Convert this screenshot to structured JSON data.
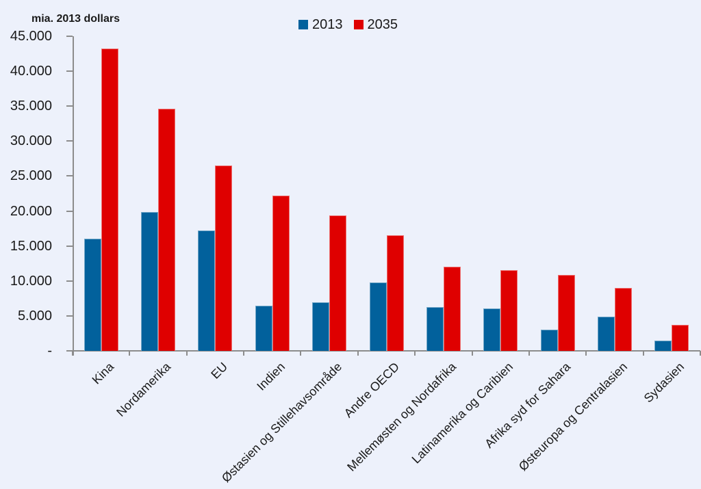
{
  "page": {
    "background": "#EDF1FB",
    "text_color": "#1A1A1A",
    "axis_color": "#8C8C8C"
  },
  "chart_data": {
    "type": "bar",
    "title": "mia. 2013 dollars",
    "categories": [
      "Kina",
      "Nordamerika",
      "EU",
      "Indien",
      "Østasien og Stillehavsområde",
      "Andre OECD",
      "Mellemøsten og Nordafrika",
      "Latinamerika og Caribien",
      "Afrika syd for Sahara",
      "Østeuropa og Centralasien",
      "Sydasien"
    ],
    "series": [
      {
        "name": "2013",
        "color": "#02619C",
        "values": [
          16000,
          19900,
          17200,
          6500,
          6900,
          9800,
          6300,
          6100,
          3000,
          4900,
          1500
        ]
      },
      {
        "name": "2035",
        "color": "#DF0000",
        "values": [
          43200,
          34600,
          26500,
          22200,
          19400,
          16500,
          12000,
          11500,
          10900,
          9000,
          3700
        ]
      }
    ],
    "xlabel": "",
    "ylabel": "mia. 2013 dollars",
    "ylim": [
      0,
      45000
    ],
    "y_tick_step": 5000,
    "y_tick_labels": [
      "45.000",
      "40.000",
      "35.000",
      "30.000",
      "25.000",
      "20.000",
      "15.000",
      "10.000",
      "5.000",
      "-"
    ],
    "grid": false,
    "legend_position": "top-center",
    "x_label_rotation_deg": -45
  }
}
